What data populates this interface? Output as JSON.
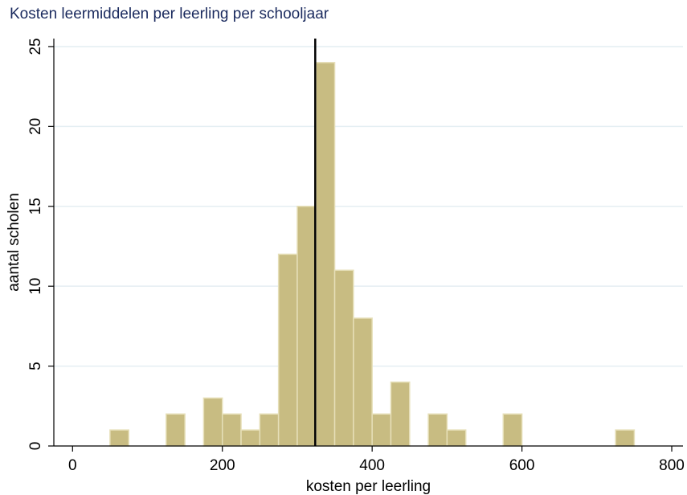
{
  "chart_data": {
    "type": "bar",
    "title": "Kosten leermiddelen per leerling per schooljaar",
    "xlabel": "kosten per leerling",
    "ylabel": "aantal scholen",
    "xlim": [
      -25,
      815
    ],
    "ylim": [
      0,
      25.5
    ],
    "xticks": [
      0,
      200,
      400,
      600,
      800
    ],
    "yticks": [
      0,
      5,
      10,
      15,
      20,
      25
    ],
    "grid": true,
    "bin_width": 25,
    "bins": [
      {
        "start": 50,
        "count": 1
      },
      {
        "start": 125,
        "count": 2
      },
      {
        "start": 175,
        "count": 3
      },
      {
        "start": 200,
        "count": 2
      },
      {
        "start": 225,
        "count": 1
      },
      {
        "start": 250,
        "count": 2
      },
      {
        "start": 275,
        "count": 12
      },
      {
        "start": 300,
        "count": 15
      },
      {
        "start": 325,
        "count": 24
      },
      {
        "start": 350,
        "count": 11
      },
      {
        "start": 375,
        "count": 8
      },
      {
        "start": 400,
        "count": 2
      },
      {
        "start": 425,
        "count": 4
      },
      {
        "start": 475,
        "count": 2
      },
      {
        "start": 500,
        "count": 1
      },
      {
        "start": 575,
        "count": 2
      },
      {
        "start": 725,
        "count": 1
      }
    ],
    "reference_line_x": 324,
    "colors": {
      "bar_fill": "#c8bc82",
      "bar_stroke": "#e6dfb8",
      "grid": "#e4eef2",
      "reference_line": "#000000",
      "title": "#1a2a5e"
    }
  }
}
